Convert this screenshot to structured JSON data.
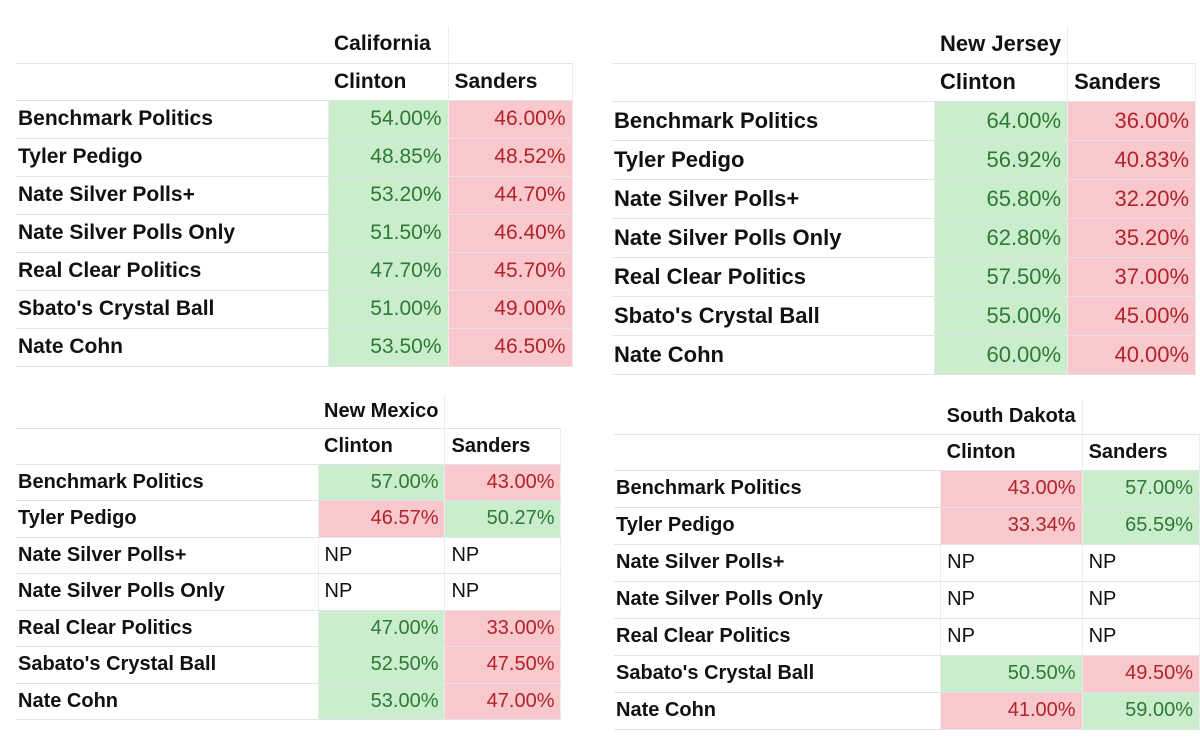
{
  "panels": [
    {
      "state": "California",
      "candidates": [
        "Clinton",
        "Sanders"
      ],
      "rows": [
        {
          "source": "Benchmark Politics",
          "clinton": "54.00%",
          "sanders": "46.00%",
          "clinton_color": "green",
          "sanders_color": "red"
        },
        {
          "source": "Tyler Pedigo",
          "clinton": "48.85%",
          "sanders": "48.52%",
          "clinton_color": "green",
          "sanders_color": "red"
        },
        {
          "source": "Nate Silver Polls+",
          "clinton": "53.20%",
          "sanders": "44.70%",
          "clinton_color": "green",
          "sanders_color": "red"
        },
        {
          "source": "Nate Silver Polls Only",
          "clinton": "51.50%",
          "sanders": "46.40%",
          "clinton_color": "green",
          "sanders_color": "red"
        },
        {
          "source": "Real Clear Politics",
          "clinton": "47.70%",
          "sanders": "45.70%",
          "clinton_color": "green",
          "sanders_color": "red"
        },
        {
          "source": "Sbato's Crystal Ball",
          "clinton": "51.00%",
          "sanders": "49.00%",
          "clinton_color": "green",
          "sanders_color": "red"
        },
        {
          "source": "Nate Cohn",
          "clinton": "53.50%",
          "sanders": "46.50%",
          "clinton_color": "green",
          "sanders_color": "red"
        }
      ]
    },
    {
      "state": "New Jersey",
      "candidates": [
        "Clinton",
        "Sanders"
      ],
      "rows": [
        {
          "source": "Benchmark Politics",
          "clinton": "64.00%",
          "sanders": "36.00%",
          "clinton_color": "green",
          "sanders_color": "red"
        },
        {
          "source": "Tyler Pedigo",
          "clinton": "56.92%",
          "sanders": "40.83%",
          "clinton_color": "green",
          "sanders_color": "red"
        },
        {
          "source": "Nate Silver Polls+",
          "clinton": "65.80%",
          "sanders": "32.20%",
          "clinton_color": "green",
          "sanders_color": "red"
        },
        {
          "source": "Nate Silver Polls Only",
          "clinton": "62.80%",
          "sanders": "35.20%",
          "clinton_color": "green",
          "sanders_color": "red"
        },
        {
          "source": "Real Clear Politics",
          "clinton": "57.50%",
          "sanders": "37.00%",
          "clinton_color": "green",
          "sanders_color": "red"
        },
        {
          "source": "Sbato's Crystal Ball",
          "clinton": "55.00%",
          "sanders": "45.00%",
          "clinton_color": "green",
          "sanders_color": "red"
        },
        {
          "source": "Nate Cohn",
          "clinton": "60.00%",
          "sanders": "40.00%",
          "clinton_color": "green",
          "sanders_color": "red"
        }
      ]
    },
    {
      "state": "New Mexico",
      "candidates": [
        "Clinton",
        "Sanders"
      ],
      "rows": [
        {
          "source": "Benchmark Politics",
          "clinton": "57.00%",
          "sanders": "43.00%",
          "clinton_color": "green",
          "sanders_color": "red"
        },
        {
          "source": "Tyler Pedigo",
          "clinton": "46.57%",
          "sanders": "50.27%",
          "clinton_color": "red",
          "sanders_color": "green"
        },
        {
          "source": "Nate Silver Polls+",
          "clinton": "NP",
          "sanders": "NP",
          "clinton_color": "none",
          "sanders_color": "none"
        },
        {
          "source": "Nate Silver Polls Only",
          "clinton": "NP",
          "sanders": "NP",
          "clinton_color": "none",
          "sanders_color": "none"
        },
        {
          "source": "Real Clear Politics",
          "clinton": "47.00%",
          "sanders": "33.00%",
          "clinton_color": "green",
          "sanders_color": "red"
        },
        {
          "source": "Sabato's Crystal Ball",
          "clinton": "52.50%",
          "sanders": "47.50%",
          "clinton_color": "green",
          "sanders_color": "red"
        },
        {
          "source": "Nate Cohn",
          "clinton": "53.00%",
          "sanders": "47.00%",
          "clinton_color": "green",
          "sanders_color": "red"
        }
      ]
    },
    {
      "state": "South Dakota",
      "candidates": [
        "Clinton",
        "Sanders"
      ],
      "rows": [
        {
          "source": "Benchmark Politics",
          "clinton": "43.00%",
          "sanders": "57.00%",
          "clinton_color": "red",
          "sanders_color": "green"
        },
        {
          "source": "Tyler Pedigo",
          "clinton": "33.34%",
          "sanders": "65.59%",
          "clinton_color": "red",
          "sanders_color": "green"
        },
        {
          "source": "Nate Silver Polls+",
          "clinton": "NP",
          "sanders": "NP",
          "clinton_color": "none",
          "sanders_color": "none"
        },
        {
          "source": "Nate Silver Polls Only",
          "clinton": "NP",
          "sanders": "NP",
          "clinton_color": "none",
          "sanders_color": "none"
        },
        {
          "source": "Real Clear Politics",
          "clinton": "NP",
          "sanders": "NP",
          "clinton_color": "none",
          "sanders_color": "none"
        },
        {
          "source": "Sabato's Crystal Ball",
          "clinton": "50.50%",
          "sanders": "49.50%",
          "clinton_color": "green",
          "sanders_color": "red"
        },
        {
          "source": "Nate Cohn",
          "clinton": "41.00%",
          "sanders": "59.00%",
          "clinton_color": "red",
          "sanders_color": "green"
        }
      ]
    }
  ],
  "colors": {
    "green_fill": "#c9edcd",
    "green_text": "#2f7a33",
    "red_fill": "#f8c8cc",
    "red_text": "#b2232c"
  }
}
